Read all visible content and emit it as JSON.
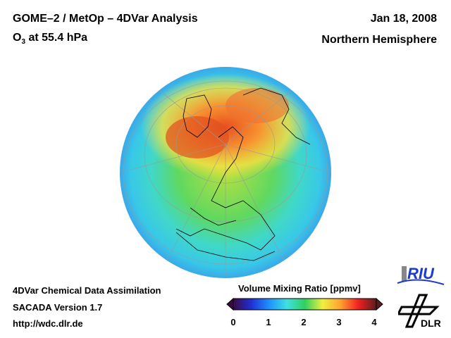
{
  "header": {
    "title": "GOME–2 / MetOp – 4DVar Analysis",
    "species": "O",
    "species_sub": "3",
    "level": " at 55.4 hPa",
    "date": "Jan 18, 2008",
    "region": "Northern Hemisphere"
  },
  "footer": {
    "line1": "4DVar Chemical Data Assimilation",
    "line2": "SACADA Version 1.7",
    "line3": "http://wdc.dlr.de"
  },
  "colorbar": {
    "title": "Volume Mixing Ratio [ppmv]",
    "ticks": [
      "0",
      "1",
      "2",
      "3",
      "4"
    ],
    "colors": [
      "#3b0a45",
      "#2030d0",
      "#1e90ff",
      "#40e0e0",
      "#30d060",
      "#f0f040",
      "#ffa030",
      "#f02020",
      "#5a1e1e"
    ]
  },
  "logos": {
    "riu": "RIU",
    "dlr": "DLR"
  }
}
